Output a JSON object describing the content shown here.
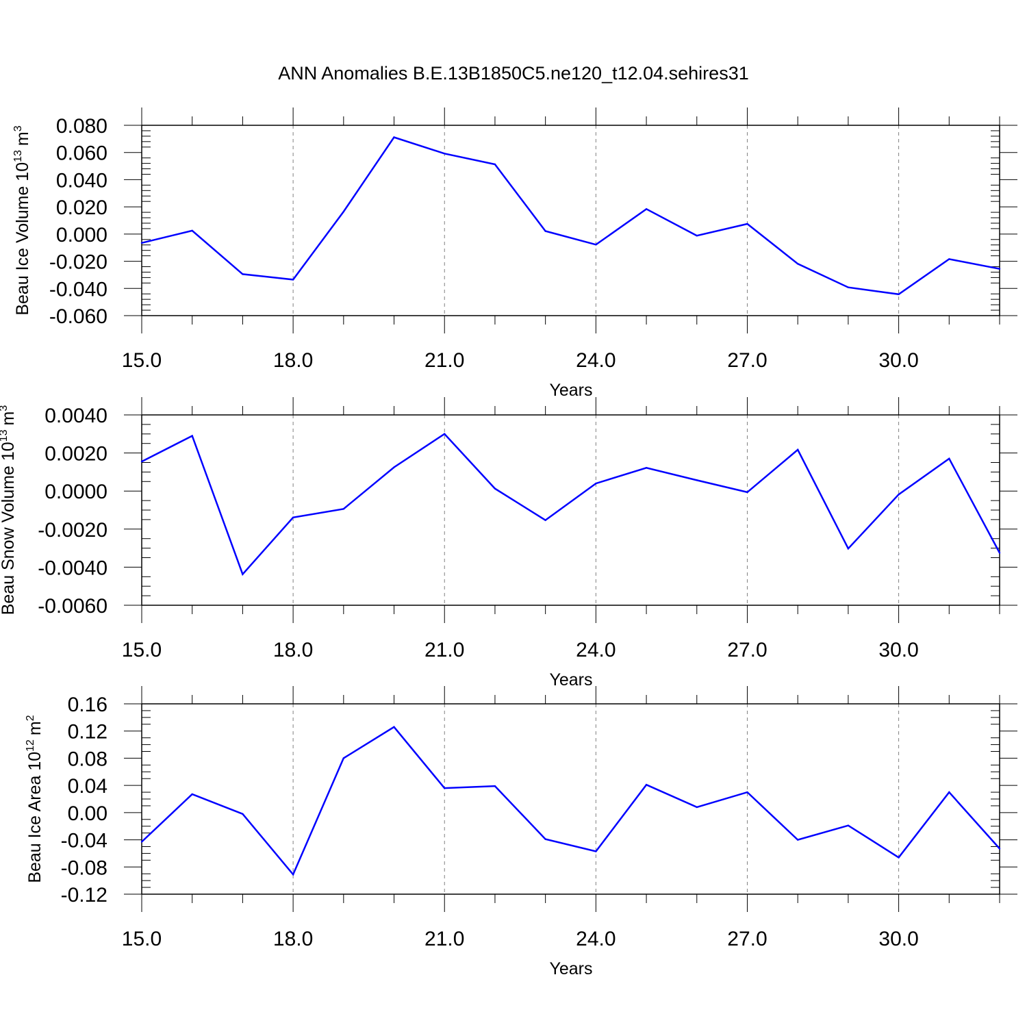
{
  "title": "ANN Anomalies B.E.13B1850C5.ne120_t12.04.sehires31",
  "colors": {
    "line": "#0000ff",
    "axis": "#000000",
    "grid": "#808080"
  },
  "chart_data": [
    {
      "type": "line",
      "ylabel": "Beau Ice Volume 10",
      "ylabel_sup": "13",
      "ylabel_unit": "m",
      "ylabel_unit_sup": "3",
      "xlabel": "Years",
      "xlim": [
        15,
        32
      ],
      "ylim": [
        -0.06,
        0.08
      ],
      "yticks": [
        0.08,
        0.06,
        0.04,
        0.02,
        0.0,
        -0.02,
        -0.04,
        -0.06
      ],
      "ytick_labels": [
        "0.080",
        "0.060",
        "0.040",
        "0.020",
        "0.000",
        "-0.020",
        "-0.040",
        "-0.060"
      ],
      "xticks": [
        15,
        18,
        21,
        24,
        27,
        30
      ],
      "xtick_labels": [
        "15.0",
        "18.0",
        "21.0",
        "24.0",
        "27.0",
        "30.0"
      ],
      "grid": "vertical dashed at major x ticks",
      "x": [
        15,
        16,
        17,
        18,
        19,
        20,
        21,
        22,
        23,
        24,
        25,
        26,
        27,
        28,
        29,
        30,
        31,
        32
      ],
      "values": [
        -0.0065,
        0.0025,
        -0.0295,
        -0.0335,
        0.0165,
        0.0712,
        0.0592,
        0.0513,
        0.0022,
        -0.0078,
        0.0184,
        -0.0012,
        0.0075,
        -0.0219,
        -0.0392,
        -0.0443,
        -0.0184,
        -0.0256
      ]
    },
    {
      "type": "line",
      "ylabel": "Beau Snow Volume 10",
      "ylabel_sup": "13",
      "ylabel_unit": "m",
      "ylabel_unit_sup": "3",
      "xlabel": "Years",
      "xlim": [
        15,
        32
      ],
      "ylim": [
        -0.006,
        0.004
      ],
      "yticks": [
        0.004,
        0.002,
        0.0,
        -0.002,
        -0.004,
        -0.006
      ],
      "ytick_labels": [
        "0.0040",
        "0.0020",
        "0.0000",
        "-0.0020",
        "-0.0040",
        "-0.0060"
      ],
      "xticks": [
        15,
        18,
        21,
        24,
        27,
        30
      ],
      "xtick_labels": [
        "15.0",
        "18.0",
        "21.0",
        "24.0",
        "27.0",
        "30.0"
      ],
      "grid": "vertical dashed at major x ticks",
      "x": [
        15,
        16,
        17,
        18,
        19,
        20,
        21,
        22,
        23,
        24,
        25,
        26,
        27,
        28,
        29,
        30,
        31,
        32
      ],
      "values": [
        0.00155,
        0.0029,
        -0.00437,
        -0.00139,
        -0.00094,
        0.00125,
        0.003,
        0.00013,
        -0.00153,
        0.0004,
        0.00122,
        0.00057,
        -6e-05,
        0.00217,
        -0.00302,
        -0.00018,
        0.0017,
        -0.00325
      ]
    },
    {
      "type": "line",
      "ylabel": "Beau Ice Area 10",
      "ylabel_sup": "12",
      "ylabel_unit": "m",
      "ylabel_unit_sup": "2",
      "xlabel": "Years",
      "xlim": [
        15,
        32
      ],
      "ylim": [
        -0.12,
        0.16
      ],
      "yticks": [
        0.16,
        0.12,
        0.08,
        0.04,
        0.0,
        -0.04,
        -0.08,
        -0.12
      ],
      "ytick_labels": [
        "0.16",
        "0.12",
        "0.08",
        "0.04",
        "0.00",
        "-0.04",
        "-0.08",
        "-0.12"
      ],
      "xticks": [
        15,
        18,
        21,
        24,
        27,
        30
      ],
      "xtick_labels": [
        "15.0",
        "18.0",
        "21.0",
        "24.0",
        "27.0",
        "30.0"
      ],
      "grid": "vertical dashed at major x ticks",
      "x": [
        15,
        16,
        17,
        18,
        19,
        20,
        21,
        22,
        23,
        24,
        25,
        26,
        27,
        28,
        29,
        30,
        31,
        32
      ],
      "values": [
        -0.043,
        0.027,
        -0.002,
        -0.091,
        0.08,
        0.126,
        0.036,
        0.039,
        -0.039,
        -0.057,
        0.041,
        0.008,
        0.03,
        -0.04,
        -0.019,
        -0.066,
        0.03,
        -0.053
      ]
    }
  ]
}
